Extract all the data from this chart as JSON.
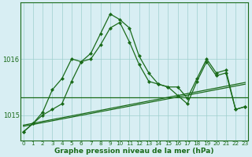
{
  "hours": [
    0,
    1,
    2,
    3,
    4,
    5,
    6,
    7,
    8,
    9,
    10,
    11,
    12,
    13,
    14,
    15,
    16,
    17,
    18,
    19,
    20,
    21,
    22,
    23
  ],
  "line1": [
    1014.7,
    1014.85,
    1015.0,
    1015.1,
    1015.2,
    1015.6,
    1015.95,
    1016.0,
    1016.25,
    1016.55,
    1016.65,
    1016.3,
    1015.9,
    1015.6,
    1015.55,
    1015.5,
    1015.35,
    1015.2,
    1015.6,
    1015.95,
    1015.7,
    1015.75,
    1015.1,
    1015.15
  ],
  "line2": [
    1014.7,
    1014.85,
    1015.05,
    1015.45,
    1015.65,
    1016.0,
    1015.95,
    1016.1,
    1016.45,
    1016.8,
    1016.7,
    1016.55,
    1016.05,
    1015.75,
    1015.55,
    1015.5,
    1015.5,
    1015.3,
    1015.65,
    1016.0,
    1015.75,
    1015.8,
    1015.1,
    1015.15
  ],
  "trend1_x": [
    0,
    23
  ],
  "trend1_y": [
    1014.8,
    1015.55
  ],
  "trend2_x": [
    0,
    23
  ],
  "trend2_y": [
    1014.82,
    1015.58
  ],
  "flat_y": 1015.32,
  "yticks": [
    1015,
    1016
  ],
  "ylim": [
    1014.55,
    1017.0
  ],
  "xlim": [
    -0.3,
    23.3
  ],
  "bg_color": "#d8eef3",
  "line_color": "#1a6b1a",
  "grid_color": "#9ecfcf",
  "xlabel": "Graphe pression niveau de la mer (hPa)",
  "marker": "D",
  "marker_size": 2.5,
  "lw": 0.9
}
